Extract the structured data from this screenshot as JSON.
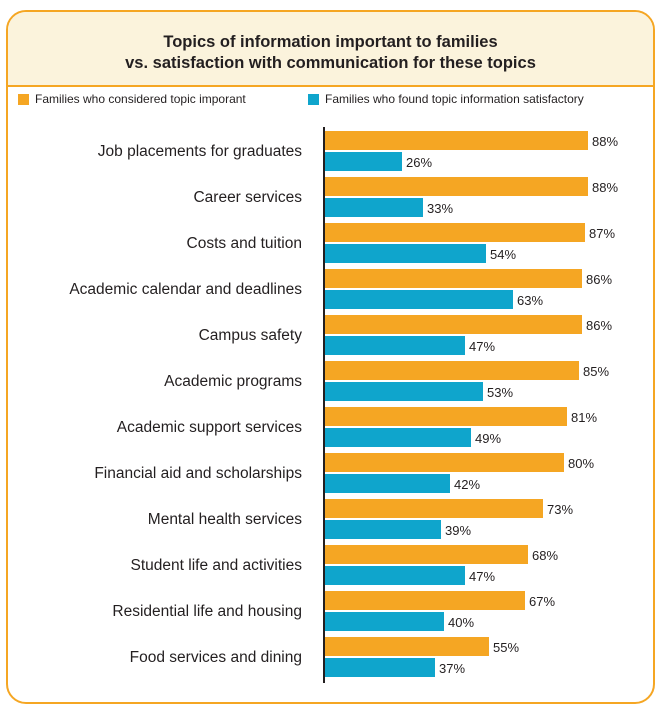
{
  "title_lines": [
    "Topics of information important to families",
    "vs. satisfaction with communication for these topics"
  ],
  "colors": {
    "important": "#f5a623",
    "satisfied": "#0fa5cc",
    "border": "#f5a623",
    "header_bg": "#fbf3dc",
    "axis": "#231f20"
  },
  "chart_data": {
    "type": "bar",
    "orientation": "horizontal",
    "title": "Topics of information important to families vs. satisfaction with communication for these topics",
    "categories": [
      "Job placements for graduates",
      "Career services",
      "Costs and tuition",
      "Academic calendar and deadlines",
      "Campus safety",
      "Academic programs",
      "Academic support services",
      "Financial aid and scholarships",
      "Mental health services",
      "Student life and activities",
      "Residential life and housing",
      "Food services and dining"
    ],
    "series": [
      {
        "name": "Families who considered topic imporant",
        "color": "#f5a623",
        "values": [
          88,
          88,
          87,
          86,
          86,
          85,
          81,
          80,
          73,
          68,
          67,
          55
        ]
      },
      {
        "name": "Families who found topic information satisfactory",
        "color": "#0fa5cc",
        "values": [
          26,
          33,
          54,
          63,
          47,
          53,
          49,
          42,
          39,
          47,
          40,
          37
        ]
      }
    ],
    "value_suffix": "%",
    "xlim": [
      0,
      100
    ],
    "legend_position": "top",
    "grid": false
  }
}
